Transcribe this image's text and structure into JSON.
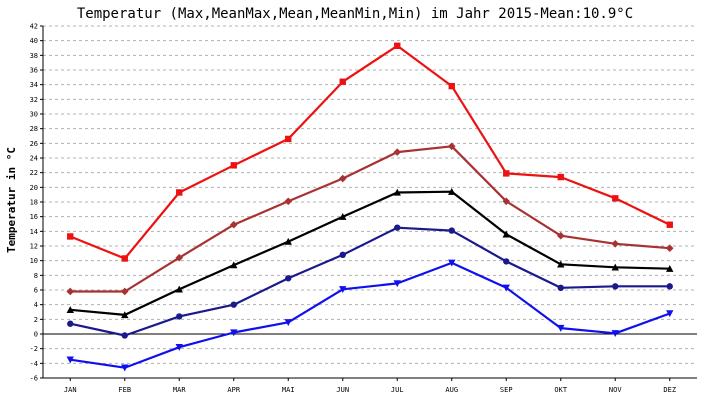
{
  "chart_data": {
    "type": "line",
    "title": "Temperatur (Max,MeanMax,Mean,MeanMin,Min) im Jahr 2015-Mean:10.9°C",
    "ylabel": "Temperatur in °C",
    "xlabel": "",
    "ylim": [
      -6,
      42
    ],
    "yticks": [
      -6,
      -4,
      -2,
      0,
      2,
      4,
      6,
      8,
      10,
      12,
      14,
      16,
      18,
      20,
      22,
      24,
      26,
      28,
      30,
      32,
      34,
      36,
      38,
      40,
      42
    ],
    "grid": true,
    "categories": [
      "JAN",
      "FEB",
      "MAR",
      "APR",
      "MAI",
      "JUN",
      "JUL",
      "AUG",
      "SEP",
      "OKT",
      "NOV",
      "DEZ"
    ],
    "series": [
      {
        "key": "max",
        "color": "#ee1111",
        "marker": "square",
        "values": [
          13.3,
          10.3,
          19.3,
          23.0,
          26.6,
          34.4,
          39.3,
          33.8,
          21.9,
          21.4,
          18.5,
          14.9
        ]
      },
      {
        "key": "meanmax",
        "color": "#a83232",
        "marker": "diamond",
        "values": [
          5.8,
          5.8,
          10.4,
          14.9,
          18.1,
          21.2,
          24.8,
          25.6,
          18.1,
          13.4,
          12.3,
          11.7
        ]
      },
      {
        "key": "mean",
        "color": "#000000",
        "marker": "triangle-up",
        "values": [
          3.3,
          2.6,
          6.1,
          9.4,
          12.6,
          16.0,
          19.3,
          19.4,
          13.6,
          9.5,
          9.1,
          8.9
        ]
      },
      {
        "key": "meanmin",
        "color": "#1a1a8c",
        "marker": "circle",
        "values": [
          1.4,
          -0.2,
          2.4,
          4.0,
          7.6,
          10.8,
          14.5,
          14.1,
          9.9,
          6.3,
          6.5,
          6.5
        ]
      },
      {
        "key": "min",
        "color": "#1010ee",
        "marker": "triangle-down",
        "values": [
          -3.5,
          -4.6,
          -1.8,
          0.2,
          1.6,
          6.1,
          6.9,
          9.7,
          6.3,
          0.8,
          0.1,
          2.8
        ]
      }
    ]
  }
}
